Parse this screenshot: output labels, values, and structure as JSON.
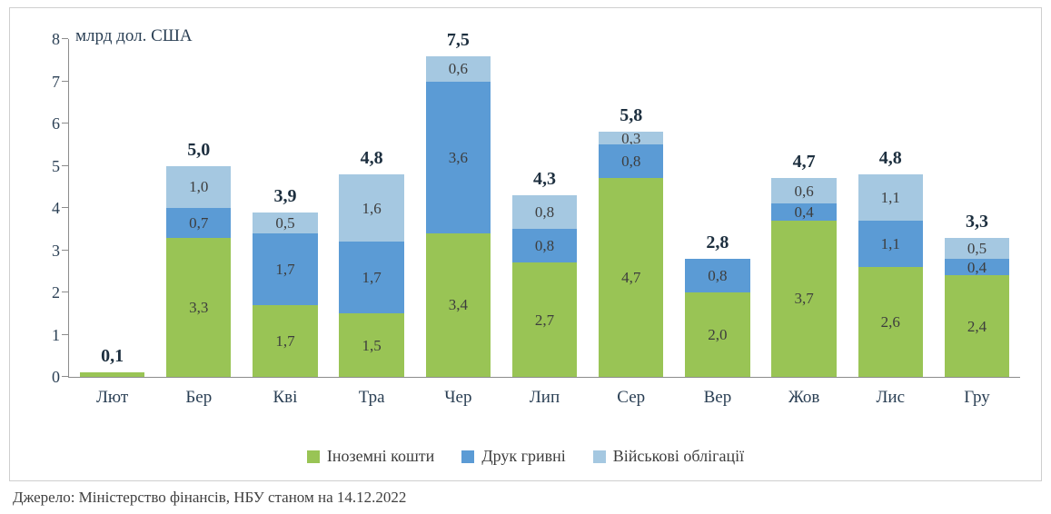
{
  "chart_data": {
    "type": "bar",
    "subtype": "stacked",
    "unit_label": "млрд дол. США",
    "categories": [
      "Лют",
      "Бер",
      "Кві",
      "Тра",
      "Чер",
      "Лип",
      "Сер",
      "Вер",
      "Жов",
      "Лис",
      "Гру"
    ],
    "totals": [
      "0,1",
      "5,0",
      "3,9",
      "4,8",
      "7,5",
      "4,3",
      "5,8",
      "2,8",
      "4,7",
      "4,8",
      "3,3"
    ],
    "series": [
      {
        "name": "Іноземні кошти",
        "color": "#99c455",
        "values": [
          0.1,
          3.3,
          1.7,
          1.5,
          3.4,
          2.7,
          4.7,
          2.0,
          3.7,
          2.6,
          2.4
        ]
      },
      {
        "name": "Друк гривні",
        "color": "#5b9bd5",
        "values": [
          0,
          0.7,
          1.7,
          1.7,
          3.6,
          0.8,
          0.8,
          0.8,
          0.4,
          1.1,
          0.4
        ]
      },
      {
        "name": "Військові облігації",
        "color": "#a5c8e1",
        "values": [
          0,
          1.0,
          0.5,
          1.6,
          0.6,
          0.8,
          0.3,
          0,
          0.6,
          1.1,
          0.5
        ]
      }
    ],
    "ylim": [
      0,
      8
    ],
    "yticks": [
      0,
      1,
      2,
      3,
      4,
      5,
      6,
      7,
      8
    ],
    "grid": false,
    "legend_position": "bottom"
  },
  "source": "Джерело: Міністерство фінансів, НБУ станом на 14.12.2022"
}
